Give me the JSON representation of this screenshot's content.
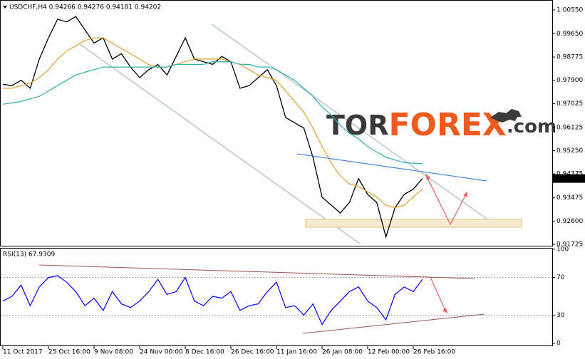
{
  "chart_data": [
    {
      "type": "line",
      "title": "USDCHF,H4 0.94266 0.94276 0.94181 0.94202",
      "categories": [
        "11 Oct 2017",
        null,
        null,
        null,
        null,
        "25 Oct 16:00",
        null,
        null,
        null,
        null,
        "9 Nov 08:00",
        null,
        null,
        null,
        null,
        "24 Nov 00:00",
        null,
        null,
        null,
        null,
        "8 Dec 16:00",
        null,
        null,
        null,
        null,
        "26 Dec 16:00",
        null,
        null,
        null,
        null,
        "11 Jan 16:00",
        null,
        null,
        null,
        null,
        "26 Jan 08:00",
        null,
        null,
        null,
        null,
        "12 Feb 00:00",
        null,
        null,
        null,
        null,
        "26 Feb 16:00",
        null
      ],
      "series": [
        {
          "color": "#000000",
          "values": [
            0.9775,
            0.977,
            0.979,
            0.976,
            0.987,
            0.995,
            1.002,
            1.001,
            1.003,
            0.998,
            0.993,
            0.995,
            0.987,
            0.989,
            0.984,
            0.98,
            0.983,
            0.985,
            0.981,
            0.988,
            0.995,
            0.987,
            0.986,
            0.985,
            0.988,
            0.986,
            0.976,
            0.977,
            0.98,
            0.983,
            0.977,
            0.965,
            0.963,
            0.961,
            0.95,
            0.935,
            0.932,
            0.929,
            0.933,
            0.942,
            0.936,
            0.933,
            0.92,
            0.931,
            0.936,
            0.938,
            0.942
          ]
        },
        {
          "color": "#e0a030",
          "values": [
            0.976,
            0.976,
            0.977,
            0.978,
            0.98,
            0.983,
            0.987,
            0.99,
            0.992,
            0.994,
            0.995,
            0.995,
            0.993,
            0.991,
            0.989,
            0.987,
            0.985,
            0.984,
            0.984,
            0.985,
            0.986,
            0.987,
            0.987,
            0.987,
            0.987,
            0.986,
            0.985,
            0.983,
            0.981,
            0.98,
            0.979,
            0.975,
            0.971,
            0.967,
            0.961,
            0.954,
            0.948,
            0.943,
            0.94,
            0.939,
            0.937,
            0.935,
            0.932,
            0.931,
            0.932,
            0.935,
            0.938
          ]
        },
        {
          "color": "#30b0b0",
          "values": [
            0.97,
            0.9705,
            0.971,
            0.972,
            0.973,
            0.975,
            0.977,
            0.979,
            0.981,
            0.982,
            0.983,
            0.984,
            0.984,
            0.984,
            0.984,
            0.984,
            0.984,
            0.984,
            0.984,
            0.985,
            0.985,
            0.985,
            0.985,
            0.986,
            0.986,
            0.986,
            0.985,
            0.985,
            0.984,
            0.984,
            0.983,
            0.981,
            0.979,
            0.976,
            0.973,
            0.969,
            0.966,
            0.962,
            0.959,
            0.957,
            0.954,
            0.952,
            0.95,
            0.949,
            0.948,
            0.9478,
            0.9476
          ]
        }
      ],
      "ylim": [
        0.9167,
        1.0087
      ],
      "yticks": [
        {
          "value": 1.0055,
          "label": "1.00550"
        },
        {
          "value": 0.9965,
          "label": "0.99650"
        },
        0.98775,
        {
          "value": 0.979,
          "label": "0.97900"
        },
        0.97025,
        0.96125,
        {
          "value": 0.9525,
          "label": "0.95250"
        },
        0.94375,
        0.93475,
        {
          "value": 0.926,
          "label": "0.92600"
        },
        0.91725
      ],
      "current_price": 0.94202,
      "watermark": [
        "TOR",
        "FOREX",
        ".com"
      ]
    },
    {
      "type": "line",
      "title": "RSI(13) 67.9309",
      "series": [
        {
          "color": "#0000ff",
          "values": [
            45,
            50,
            62,
            40,
            60,
            70,
            72,
            65,
            55,
            40,
            48,
            35,
            55,
            42,
            38,
            45,
            55,
            68,
            52,
            55,
            70,
            45,
            40,
            50,
            48,
            55,
            35,
            40,
            42,
            55,
            65,
            38,
            40,
            30,
            42,
            20,
            35,
            45,
            55,
            60,
            45,
            38,
            25,
            52,
            60,
            55,
            68
          ]
        }
      ],
      "ylim": [
        0,
        100
      ],
      "yticks": [
        100,
        70,
        30,
        0
      ]
    }
  ]
}
